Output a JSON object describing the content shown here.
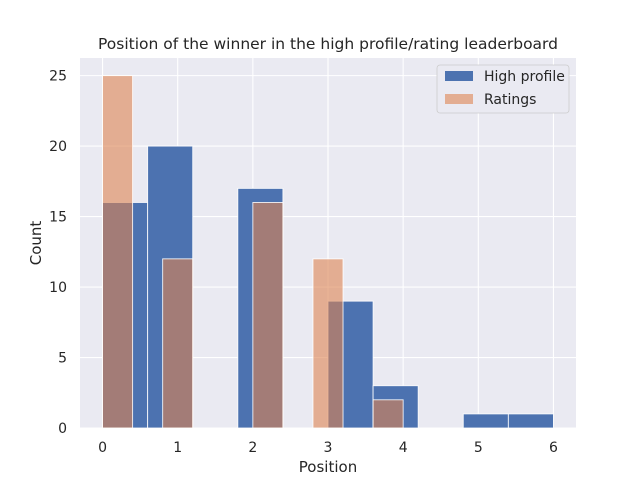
{
  "chart_data": {
    "type": "bar",
    "title": "Position of the winner in the high profile/rating leaderboard",
    "xlabel": "Position",
    "ylabel": "Count",
    "xlim": [
      -0.3,
      6.3
    ],
    "ylim": [
      0,
      26.25
    ],
    "xticks": [
      0,
      1,
      2,
      3,
      4,
      5,
      6
    ],
    "yticks": [
      0,
      5,
      10,
      15,
      20,
      25
    ],
    "grid": true,
    "legend_position": "top-right",
    "series": [
      {
        "name": "High profile",
        "color": "#4c72b0",
        "opacity": 1,
        "bins": [
          {
            "x0": 0.0,
            "x1": 0.6,
            "value": 16
          },
          {
            "x0": 0.6,
            "x1": 1.2,
            "value": 20
          },
          {
            "x0": 1.2,
            "x1": 1.8,
            "value": 0
          },
          {
            "x0": 1.8,
            "x1": 2.4,
            "value": 17
          },
          {
            "x0": 2.4,
            "x1": 3.0,
            "value": 0
          },
          {
            "x0": 3.0,
            "x1": 3.6,
            "value": 9
          },
          {
            "x0": 3.6,
            "x1": 4.2,
            "value": 3
          },
          {
            "x0": 4.2,
            "x1": 4.8,
            "value": 0
          },
          {
            "x0": 4.8,
            "x1": 5.4,
            "value": 1
          },
          {
            "x0": 5.4,
            "x1": 6.0,
            "value": 1
          }
        ]
      },
      {
        "name": "Ratings",
        "color": "#dd8452",
        "opacity": 0.6,
        "bins": [
          {
            "x0": 0.0,
            "x1": 0.4,
            "value": 25
          },
          {
            "x0": 0.4,
            "x1": 0.8,
            "value": 0
          },
          {
            "x0": 0.8,
            "x1": 1.2,
            "value": 12
          },
          {
            "x0": 1.2,
            "x1": 1.6,
            "value": 0
          },
          {
            "x0": 1.6,
            "x1": 2.0,
            "value": 0
          },
          {
            "x0": 2.0,
            "x1": 2.4,
            "value": 16
          },
          {
            "x0": 2.4,
            "x1": 2.8,
            "value": 0
          },
          {
            "x0": 2.8,
            "x1": 3.2,
            "value": 12
          },
          {
            "x0": 3.2,
            "x1": 3.6,
            "value": 0
          },
          {
            "x0": 3.6,
            "x1": 4.0,
            "value": 2
          }
        ]
      }
    ]
  }
}
